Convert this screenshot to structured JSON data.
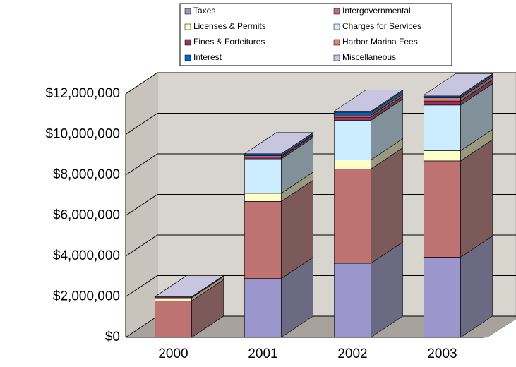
{
  "chart_data": {
    "type": "bar3d_stacked",
    "categories": [
      "2000",
      "2001",
      "2002",
      "2003"
    ],
    "series": [
      {
        "name": "Taxes",
        "color": "#9b96cc",
        "values": [
          0,
          2900000,
          3650000,
          3950000
        ]
      },
      {
        "name": "Intergovernmental",
        "color": "#bf7272",
        "values": [
          1800000,
          3800000,
          4650000,
          4750000
        ]
      },
      {
        "name": "Licenses & Permits",
        "color": "#ffffcc",
        "values": [
          150000,
          400000,
          450000,
          500000
        ]
      },
      {
        "name": "Charges for Services",
        "color": "#ccecff",
        "values": [
          0,
          1700000,
          1950000,
          2250000
        ]
      },
      {
        "name": "Fines & Forfeitures",
        "color": "#993366",
        "values": [
          50000,
          100000,
          150000,
          200000
        ]
      },
      {
        "name": "Harbor Marina Fees",
        "color": "#e8806c",
        "values": [
          0,
          50000,
          100000,
          150000
        ]
      },
      {
        "name": "Interest",
        "color": "#0066cc",
        "values": [
          0,
          100000,
          150000,
          100000
        ]
      },
      {
        "name": "Miscellaneous",
        "color": "#c8c4e8",
        "values": [
          0,
          0,
          50000,
          50000
        ]
      }
    ],
    "ylim": [
      0,
      12000000
    ],
    "yticks": [
      {
        "value": 0,
        "label": "$0"
      },
      {
        "value": 2000000,
        "label": "$2,000,000"
      },
      {
        "value": 4000000,
        "label": "$4,000,000"
      },
      {
        "value": 6000000,
        "label": "$6,000,000"
      },
      {
        "value": 8000000,
        "label": "$8,000,000"
      },
      {
        "value": 10000000,
        "label": "$10,000,000"
      },
      {
        "value": 12000000,
        "label": "$12,000,000"
      }
    ],
    "grid": true
  }
}
